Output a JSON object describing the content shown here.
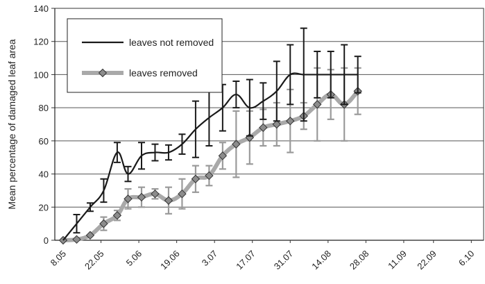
{
  "chart_data": {
    "type": "line",
    "title": "",
    "xlabel": "",
    "ylabel": "Mean percentage of damaged leaf area",
    "ylim": [
      0,
      140
    ],
    "yticks": [
      0,
      20,
      40,
      60,
      80,
      100,
      120,
      140
    ],
    "grid": "horizontal",
    "legend_placement": "top-left",
    "xtick_labels": [
      "8.05",
      "22.05",
      "5.06",
      "19.06",
      "3.07",
      "17.07",
      "31.07",
      "14.08",
      "28.08",
      "11.09",
      "22.09",
      "6.10"
    ],
    "xtick_days": [
      0,
      14,
      28,
      42,
      56,
      70,
      84,
      98,
      112,
      126,
      137,
      151
    ],
    "x": [
      "8.05",
      "13.05",
      "18.05",
      "23.05",
      "28.05",
      "1.06",
      "6.06",
      "11.06",
      "16.06",
      "21.06",
      "26.06",
      "1.07",
      "6.07",
      "11.07",
      "16.07",
      "21.07",
      "26.07",
      "31.07",
      "5.08",
      "10.08",
      "15.08",
      "20.08",
      "25.08",
      "30.08",
      "4.09",
      "9.09",
      "14.09",
      "19.09",
      "24.09",
      "29.09",
      "4.10",
      "9.10"
    ],
    "x_days": [
      0,
      5,
      10,
      15,
      20,
      24,
      29,
      34,
      39,
      44,
      49,
      54,
      59,
      64,
      69,
      74,
      79,
      84,
      89,
      94,
      99,
      104,
      109,
      114,
      119,
      124,
      129,
      134,
      139,
      144,
      149,
      154
    ],
    "series": [
      {
        "name": "leaves not removed",
        "color": "#1a1a1a",
        "marker": "none",
        "points": [
          {
            "x": "8.05",
            "y": 0,
            "err": null
          },
          {
            "x": "13.05",
            "y": 10,
            "err": 5.5
          },
          {
            "x": "18.05",
            "y": 20,
            "err": 2.5
          },
          {
            "x": "23.05",
            "y": 30,
            "err": 7
          },
          {
            "x": "28.05",
            "y": 53,
            "err": 6
          },
          {
            "x": "1.06",
            "y": 40,
            "err": 4.5
          },
          {
            "x": "6.06",
            "y": 51,
            "err": 8
          },
          {
            "x": "11.06",
            "y": 53,
            "err": 5
          },
          {
            "x": "16.06",
            "y": 53,
            "err": 4.5
          },
          {
            "x": "21.06",
            "y": 58,
            "err": 6
          },
          {
            "x": "26.06",
            "y": 67,
            "err": 17
          },
          {
            "x": "1.07",
            "y": 74,
            "err": 17
          },
          {
            "x": "6.07",
            "y": 80,
            "err": 14
          },
          {
            "x": "11.07",
            "y": 88,
            "err": 8
          },
          {
            "x": "16.07",
            "y": 80,
            "err": 17
          },
          {
            "x": "21.07",
            "y": 84,
            "err": 11
          },
          {
            "x": "26.07",
            "y": 90,
            "err": 18
          },
          {
            "x": "31.07",
            "y": 100,
            "err": 18
          },
          {
            "x": "5.08",
            "y": 100,
            "err": 28
          },
          {
            "x": "10.08",
            "y": 100,
            "err": 14
          },
          {
            "x": "15.08",
            "y": 100,
            "err": 14
          },
          {
            "x": "20.08",
            "y": 100,
            "err": 18
          },
          {
            "x": "25.08",
            "y": 100,
            "err": 11
          }
        ]
      },
      {
        "name": "leaves removed",
        "color": "#999999",
        "marker": "diamond",
        "points": [
          {
            "x": "8.05",
            "y": 0,
            "err": null
          },
          {
            "x": "13.05",
            "y": 0.5,
            "err": null
          },
          {
            "x": "18.05",
            "y": 3,
            "err": null
          },
          {
            "x": "23.05",
            "y": 10,
            "err": 4
          },
          {
            "x": "28.05",
            "y": 15,
            "err": 3
          },
          {
            "x": "1.06",
            "y": 25,
            "err": 6
          },
          {
            "x": "6.06",
            "y": 26,
            "err": 6
          },
          {
            "x": "11.06",
            "y": 28,
            "err": 3
          },
          {
            "x": "16.06",
            "y": 24,
            "err": 8
          },
          {
            "x": "21.06",
            "y": 28,
            "err": 9
          },
          {
            "x": "26.06",
            "y": 37,
            "err": 8
          },
          {
            "x": "1.07",
            "y": 39,
            "err": 6
          },
          {
            "x": "6.07",
            "y": 51,
            "err": 8
          },
          {
            "x": "11.07",
            "y": 58,
            "err": 20
          },
          {
            "x": "16.07",
            "y": 62,
            "err": 16
          },
          {
            "x": "21.07",
            "y": 68,
            "err": 11
          },
          {
            "x": "26.07",
            "y": 70,
            "err": 13
          },
          {
            "x": "31.07",
            "y": 72,
            "err": 19
          },
          {
            "x": "5.08",
            "y": 75,
            "err": 8
          },
          {
            "x": "10.08",
            "y": 82,
            "err": 22
          },
          {
            "x": "15.08",
            "y": 88,
            "err": 15
          },
          {
            "x": "20.08",
            "y": 82,
            "err": 22
          },
          {
            "x": "25.08",
            "y": 90,
            "err": 14
          }
        ]
      }
    ]
  }
}
